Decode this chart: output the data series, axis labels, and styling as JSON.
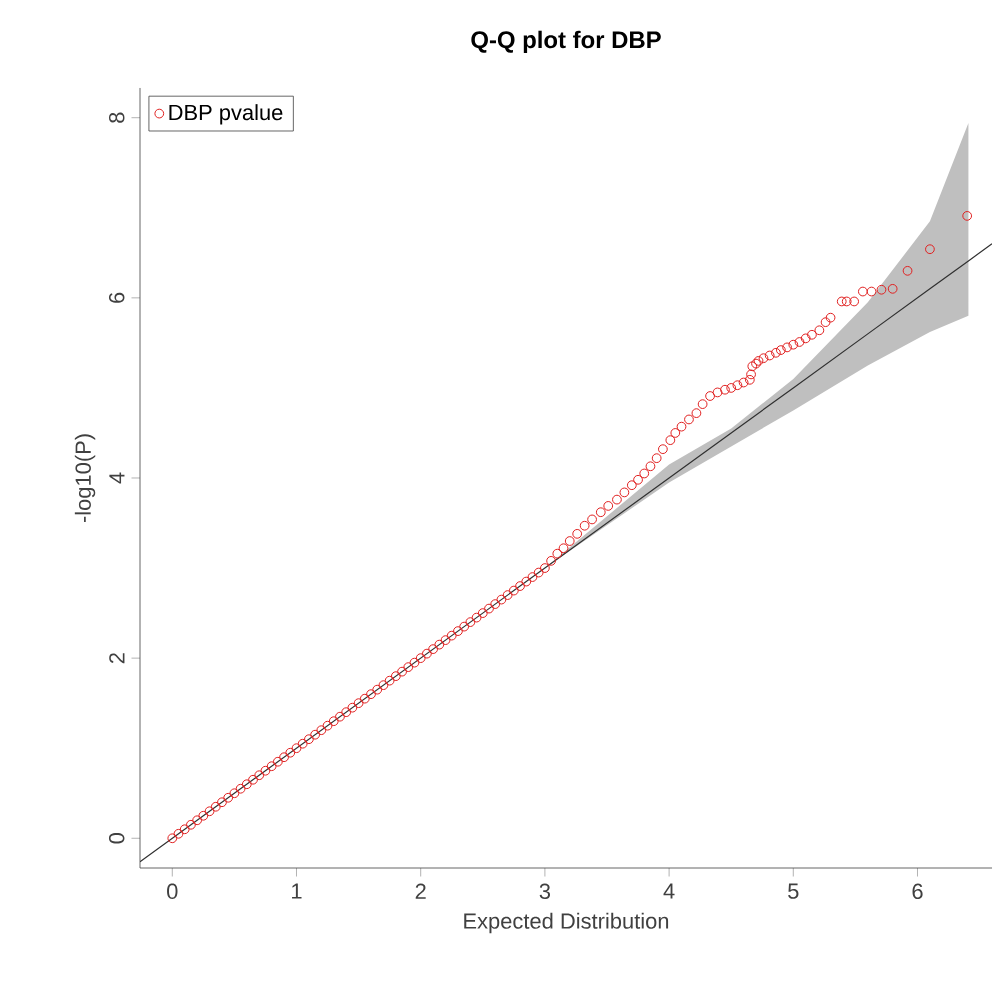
{
  "chart_data": {
    "type": "scatter",
    "title": "Q-Q plot for DBP",
    "xlabel": "Expected Distribution",
    "ylabel": "-log10(P)",
    "xlim": [
      -0.26,
      6.6
    ],
    "ylim": [
      -0.33,
      8.33
    ],
    "xticks": [
      0,
      1,
      2,
      3,
      4,
      5,
      6
    ],
    "yticks": [
      0,
      2,
      4,
      6,
      8
    ],
    "grid": false,
    "legend": "top left",
    "series": [
      {
        "type": "line",
        "color": "#303030",
        "line_style": "solid",
        "marker": "none",
        "x": [
          -0.26,
          3,
          4,
          4.5,
          5,
          5.6,
          6.1,
          6.41,
          6.6
        ],
        "values": [
          -0.26,
          3,
          4,
          4.5,
          5,
          5.6,
          6.1,
          6.41,
          6.6
        ],
        "lower": [
          null,
          3,
          3.95,
          4.35,
          4.75,
          5.25,
          5.62,
          5.8,
          null
        ],
        "upper": [
          null,
          3,
          4.15,
          4.55,
          5.1,
          5.95,
          6.85,
          7.94,
          null
        ]
      },
      {
        "name": "DBP pvalue",
        "color": "#e02020",
        "marker": "circle",
        "x": [
          0,
          0.05,
          0.1,
          0.15,
          0.2,
          0.25,
          0.3,
          0.35,
          0.4,
          0.45,
          0.5,
          0.55,
          0.6,
          0.65,
          0.7,
          0.75,
          0.8,
          0.85,
          0.9,
          0.95,
          1,
          1.05,
          1.1,
          1.15,
          1.2,
          1.25,
          1.3,
          1.35,
          1.4,
          1.45,
          1.5,
          1.55,
          1.6,
          1.65,
          1.7,
          1.75,
          1.8,
          1.85,
          1.9,
          1.95,
          2,
          2.05,
          2.1,
          2.15,
          2.2,
          2.25,
          2.3,
          2.35,
          2.4,
          2.45,
          2.5,
          2.55,
          2.6,
          2.65,
          2.7,
          2.75,
          2.8,
          2.85,
          2.9,
          2.95,
          3,
          3.05,
          3.1,
          3.15,
          3.2,
          3.26,
          3.32,
          3.38,
          3.45,
          3.51,
          3.58,
          3.64,
          3.7,
          3.75,
          3.8,
          3.85,
          3.9,
          3.95,
          4.01,
          4.05,
          4.1,
          4.16,
          4.22,
          4.27,
          4.33,
          4.39,
          4.45,
          4.5,
          4.55,
          4.6,
          4.65,
          4.66,
          4.67,
          4.7,
          4.72,
          4.76,
          4.81,
          4.86,
          4.9,
          4.95,
          5,
          5.05,
          5.1,
          5.15,
          5.21,
          5.26,
          5.3,
          5.39,
          5.43,
          5.49,
          5.56,
          5.63,
          5.71,
          5.8,
          5.92,
          6.1,
          6.4
        ],
        "values": [
          0,
          0.05,
          0.1,
          0.15,
          0.2,
          0.25,
          0.3,
          0.35,
          0.4,
          0.45,
          0.5,
          0.55,
          0.6,
          0.65,
          0.7,
          0.75,
          0.8,
          0.85,
          0.9,
          0.95,
          1,
          1.05,
          1.1,
          1.15,
          1.2,
          1.25,
          1.3,
          1.35,
          1.4,
          1.45,
          1.5,
          1.55,
          1.6,
          1.65,
          1.7,
          1.75,
          1.8,
          1.85,
          1.9,
          1.95,
          2,
          2.05,
          2.1,
          2.15,
          2.2,
          2.25,
          2.3,
          2.35,
          2.4,
          2.45,
          2.5,
          2.55,
          2.6,
          2.65,
          2.7,
          2.75,
          2.8,
          2.85,
          2.9,
          2.95,
          3,
          3.08,
          3.16,
          3.22,
          3.3,
          3.38,
          3.47,
          3.54,
          3.62,
          3.69,
          3.76,
          3.84,
          3.92,
          3.98,
          4.05,
          4.13,
          4.22,
          4.32,
          4.42,
          4.5,
          4.57,
          4.65,
          4.72,
          4.82,
          4.91,
          4.95,
          4.98,
          5.0,
          5.03,
          5.06,
          5.09,
          5.15,
          5.24,
          5.27,
          5.3,
          5.33,
          5.36,
          5.39,
          5.42,
          5.45,
          5.48,
          5.51,
          5.55,
          5.59,
          5.64,
          5.73,
          5.78,
          5.96,
          5.96,
          5.96,
          6.07,
          6.07,
          6.09,
          6.1,
          6.3,
          6.54,
          6.91
        ]
      }
    ]
  }
}
